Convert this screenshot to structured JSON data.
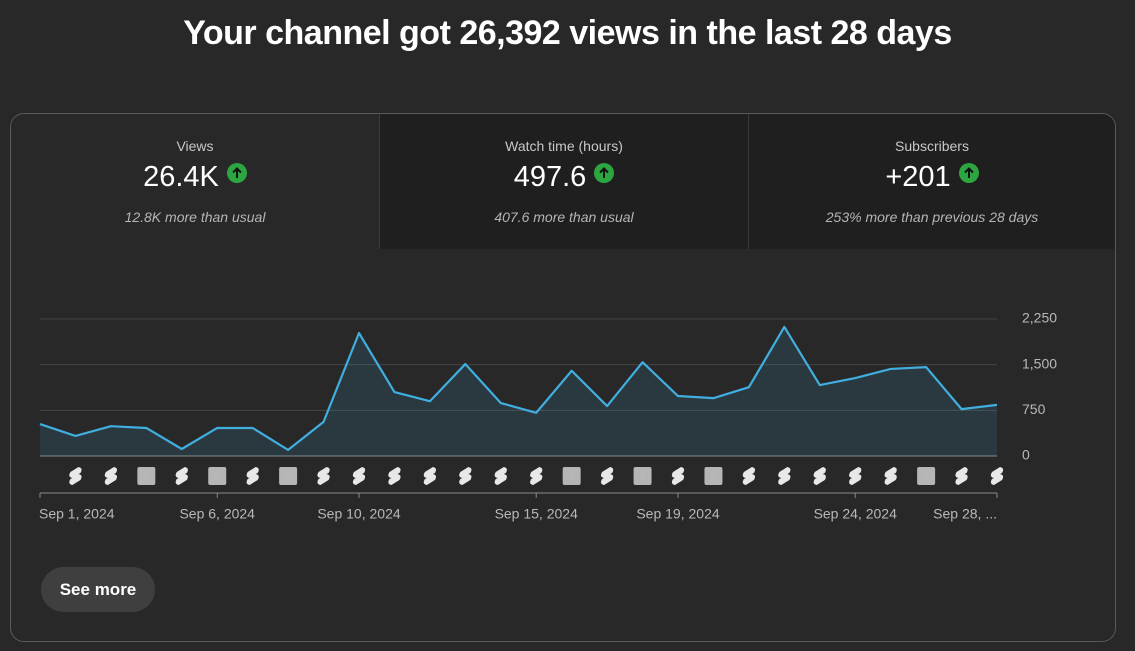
{
  "header": {
    "title": "Your channel got 26,392 views in the last 28 days"
  },
  "metrics": [
    {
      "label": "Views",
      "value": "26.4K",
      "note": "12.8K more than usual"
    },
    {
      "label": "Watch time (hours)",
      "value": "497.6",
      "note": "407.6 more than usual"
    },
    {
      "label": "Subscribers",
      "value": "+201",
      "note": "253% more than previous 28 days"
    }
  ],
  "chart_data": {
    "type": "line",
    "categories": [
      "Sep 1, 2024",
      null,
      null,
      null,
      null,
      "Sep 6, 2024",
      null,
      null,
      null,
      "Sep 10, 2024",
      null,
      null,
      null,
      null,
      "Sep 15, 2024",
      null,
      null,
      null,
      "Sep 19, 2024",
      null,
      null,
      null,
      null,
      "Sep 24, 2024",
      null,
      null,
      null,
      "Sep 28, ..."
    ],
    "series": [
      {
        "name": "Views",
        "color": "#41aee0",
        "values": [
          525,
          330,
          490,
          460,
          115,
          460,
          460,
          100,
          560,
          2020,
          1050,
          900,
          1510,
          870,
          710,
          1400,
          820,
          1540,
          985,
          950,
          1130,
          2120,
          1165,
          1280,
          1430,
          1460,
          770,
          840
        ]
      }
    ],
    "upload_badges": [
      null,
      null,
      null,
      2,
      null,
      2,
      null,
      2,
      null,
      null,
      null,
      null,
      null,
      null,
      null,
      2,
      null,
      2,
      null,
      2,
      null,
      null,
      null,
      null,
      null,
      2,
      null,
      null
    ],
    "ylim": [
      0,
      2250
    ],
    "yticks": [
      0,
      750,
      {
        "value": 1500,
        "label": "1,500"
      },
      {
        "value": 2250,
        "label": "2,250"
      }
    ],
    "grid": true
  },
  "button": {
    "label": "See more"
  }
}
